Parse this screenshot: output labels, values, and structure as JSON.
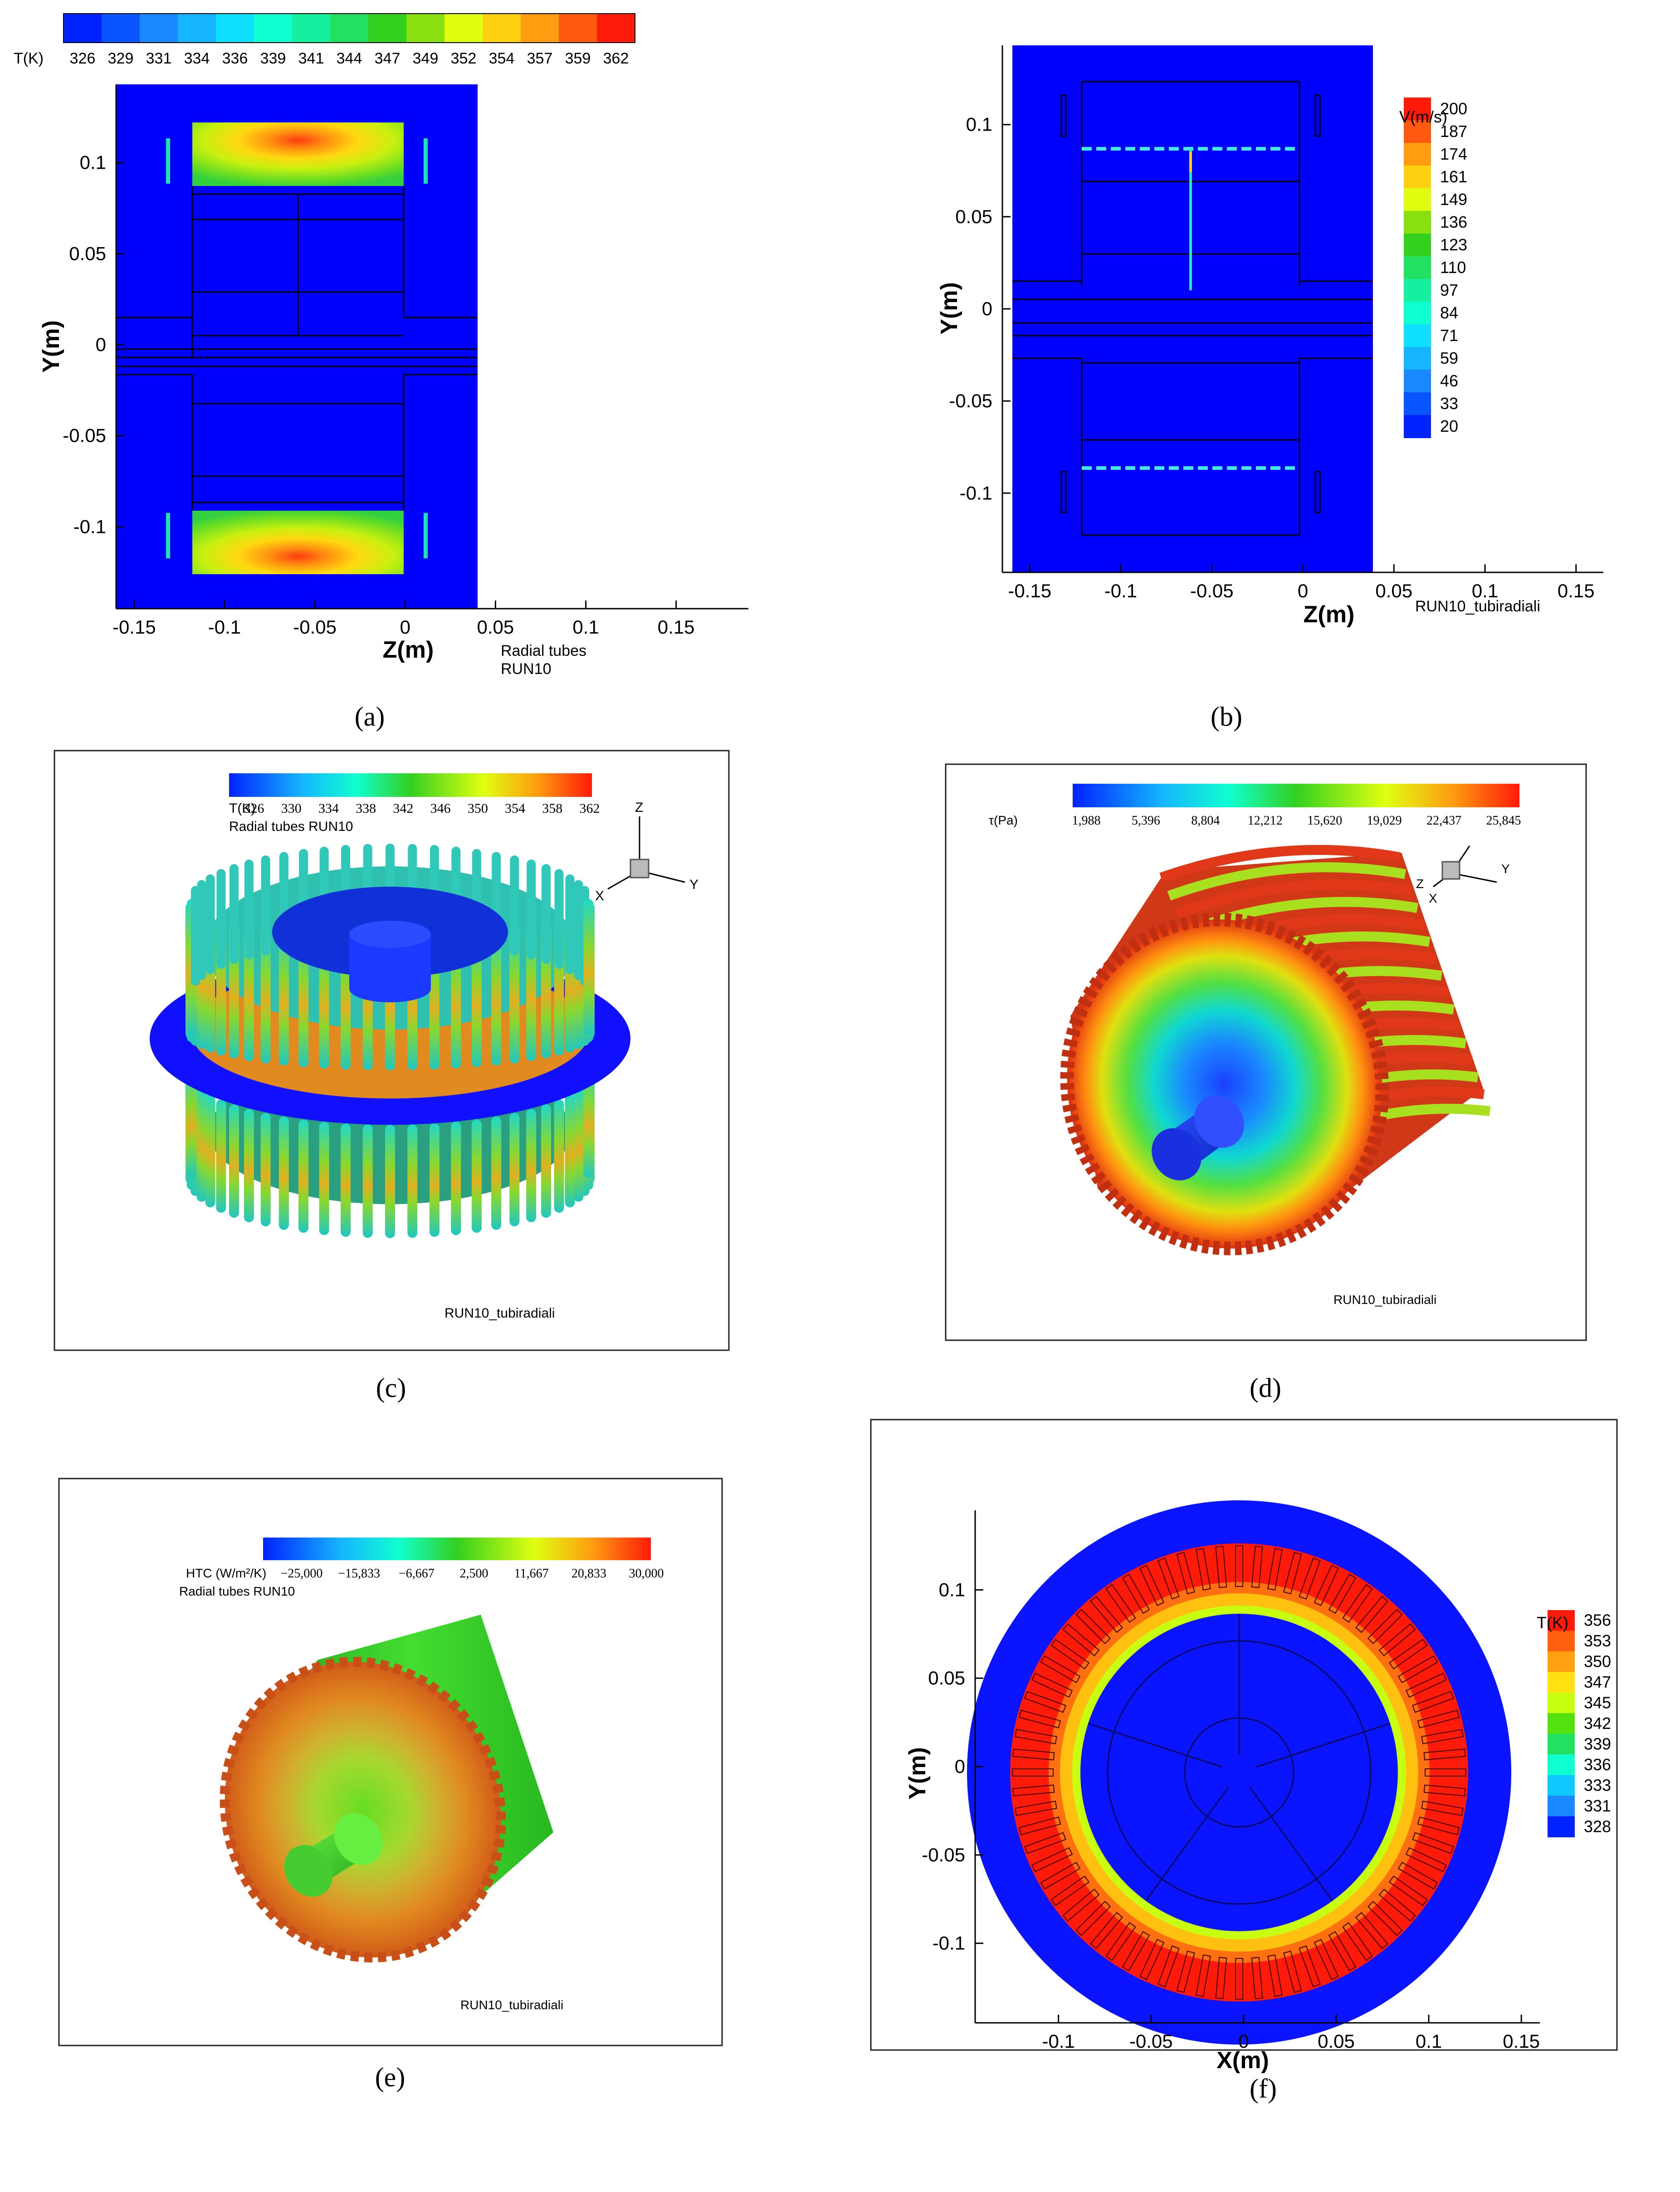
{
  "panel_labels": [
    "(a)",
    "(b)",
    "(c)",
    "(d)",
    "(e)",
    "(f)"
  ],
  "chart_data": [
    {
      "panel": "a",
      "type": "heatmap",
      "title": "",
      "xlabel": "Z(m)",
      "ylabel": "Y(m)",
      "xlim": [
        -0.16,
        0.19
      ],
      "ylim": [
        -0.145,
        0.143
      ],
      "xticks": [
        -0.15,
        -0.1,
        -0.05,
        0,
        0.05,
        0.1,
        0.15
      ],
      "xtick_labels": [
        "-0.15",
        "-0.1",
        "-0.05",
        "0",
        "0.05",
        "0.1",
        "0.15"
      ],
      "yticks": [
        0.1,
        0.05,
        0,
        -0.05,
        -0.1
      ],
      "ytick_labels": [
        "0.1",
        "0.05",
        "0",
        "-0.05",
        "-0.1"
      ],
      "colorbar": {
        "label": "T(K)",
        "values": [
          "326",
          "329",
          "331",
          "334",
          "336",
          "339",
          "341",
          "344",
          "347",
          "349",
          "352",
          "354",
          "357",
          "359",
          "362"
        ],
        "colors": [
          "#0022ff",
          "#0a55ff",
          "#1a88ff",
          "#15b5ff",
          "#10e0ff",
          "#10ffd0",
          "#15f0a0",
          "#22e060",
          "#33d020",
          "#88e010",
          "#e0ff10",
          "#ffd010",
          "#ff9c10",
          "#ff5a10",
          "#ff1a0a"
        ]
      },
      "annotations": [
        "Radial tubes",
        "RUN10"
      ]
    },
    {
      "panel": "b",
      "type": "heatmap",
      "xlabel": "Z(m)",
      "ylabel": "Y(m)",
      "xlim": [
        -0.165,
        0.165
      ],
      "ylim": [
        -0.143,
        0.143
      ],
      "xticks": [
        -0.15,
        -0.1,
        -0.05,
        0,
        0.05,
        0.1,
        0.15
      ],
      "xtick_labels": [
        "-0.15",
        "-0.1",
        "-0.05",
        "0",
        "0.05",
        "0.1",
        "0.15"
      ],
      "yticks": [
        0.1,
        0.05,
        0,
        -0.05,
        -0.1
      ],
      "ytick_labels": [
        "0.1",
        "0.05",
        "0",
        "-0.05",
        "-0.1"
      ],
      "colorbar": {
        "label": "V(m/s)",
        "values": [
          "200",
          "187",
          "174",
          "161",
          "149",
          "136",
          "123",
          "110",
          "97",
          "84",
          "71",
          "59",
          "46",
          "33",
          "20"
        ],
        "colors": [
          "#ff1a0a",
          "#ff5a10",
          "#ff9c10",
          "#ffd010",
          "#e0ff10",
          "#88e010",
          "#33d020",
          "#22e060",
          "#15f0a0",
          "#10ffd0",
          "#10e0ff",
          "#15b5ff",
          "#1a88ff",
          "#0a55ff",
          "#0022ff"
        ]
      },
      "annotations": [
        "RUN10_tubiradiali"
      ]
    },
    {
      "panel": "c",
      "type": "heatmap",
      "title": "Radial tubes RUN10",
      "colorbar": {
        "label": "T(K)",
        "values": [
          "326",
          "330",
          "334",
          "338",
          "342",
          "346",
          "350",
          "354",
          "358",
          "362"
        ]
      },
      "axes_triad": [
        "Z",
        "X",
        "Y"
      ],
      "annotations": [
        "RUN10_tubiradiali"
      ]
    },
    {
      "panel": "d",
      "type": "heatmap",
      "colorbar": {
        "label": "τ(Pa)",
        "values": [
          "1,988",
          "5,396",
          "8,804",
          "12,212",
          "15,620",
          "19,029",
          "22,437",
          "25,845"
        ]
      },
      "axes_triad": [
        "Z",
        "X",
        "Y"
      ],
      "annotations": [
        "RUN10_tubiradiali"
      ]
    },
    {
      "panel": "e",
      "type": "heatmap",
      "title": "Radial tubes RUN10",
      "colorbar": {
        "label": "HTC (W/m²/K)",
        "values": [
          "−25,000",
          "−15,833",
          "−6,667",
          "2,500",
          "11,667",
          "20,833",
          "30,000"
        ]
      },
      "annotations": [
        "RUN10_tubiradiali"
      ]
    },
    {
      "panel": "f",
      "type": "heatmap",
      "xlabel": "X(m)",
      "ylabel": "Y(m)",
      "xlim": [
        -0.145,
        0.16
      ],
      "ylim": [
        -0.145,
        0.145
      ],
      "xticks": [
        -0.1,
        -0.05,
        0,
        0.05,
        0.1,
        0.15
      ],
      "xtick_labels": [
        "-0.1",
        "-0.05",
        "0",
        "0.05",
        "0.1",
        "0.15"
      ],
      "yticks": [
        0.1,
        0.05,
        0,
        -0.05,
        -0.1
      ],
      "ytick_labels": [
        "0.1",
        "0.05",
        "0",
        "-0.05",
        "-0.1"
      ],
      "colorbar": {
        "label": "T(K)",
        "values": [
          "356",
          "353",
          "350",
          "347",
          "345",
          "342",
          "339",
          "336",
          "333",
          "331",
          "328"
        ],
        "colors": [
          "#ff1a0a",
          "#ff6010",
          "#ffa010",
          "#ffe010",
          "#c8ff10",
          "#55e010",
          "#22e060",
          "#10ffd0",
          "#10c8ff",
          "#1a88ff",
          "#0022ff"
        ]
      }
    }
  ]
}
